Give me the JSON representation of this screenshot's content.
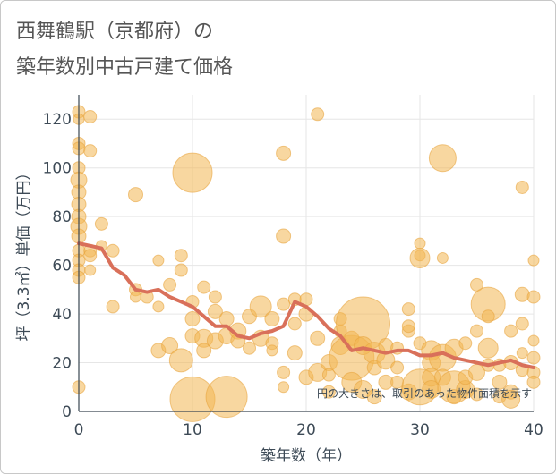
{
  "title_line1": "西舞鶴駅（京都府）の",
  "title_line2": "築年数別中古戸建て価格",
  "chart_data": {
    "type": "scatter",
    "title": "西舞鶴駅（京都府）の築年数別中古戸建て価格",
    "xlabel": "築年数（年）",
    "ylabel": "坪（3.3㎡）単価（万円）",
    "xlim": [
      0,
      40
    ],
    "ylim": [
      0,
      130
    ],
    "xticks": [
      0,
      10,
      20,
      30,
      40
    ],
    "yticks": [
      0,
      20,
      40,
      60,
      80,
      100,
      120
    ],
    "annotation": "円の大きさは、取引のあった物件面積を示す",
    "colors": {
      "bubble_fill": "#f2b652",
      "bubble_stroke": "#e8a540",
      "line": "#d9705a"
    },
    "series": [
      {
        "type": "bubble",
        "points": [
          [
            0,
            123,
            7
          ],
          [
            0,
            120,
            6
          ],
          [
            0,
            110,
            7
          ],
          [
            0,
            100,
            7
          ],
          [
            0,
            95,
            9
          ],
          [
            0,
            90,
            8
          ],
          [
            0,
            85,
            8
          ],
          [
            0,
            80,
            8
          ],
          [
            0,
            76,
            9
          ],
          [
            0,
            72,
            8
          ],
          [
            0,
            66,
            7
          ],
          [
            0,
            62,
            7
          ],
          [
            0,
            58,
            7
          ],
          [
            0,
            55,
            7
          ],
          [
            0,
            10,
            7
          ],
          [
            0,
            108,
            7
          ],
          [
            1,
            121,
            7
          ],
          [
            1,
            107,
            7
          ],
          [
            1,
            66,
            7
          ],
          [
            1,
            64,
            7
          ],
          [
            1,
            58,
            6
          ],
          [
            2,
            77,
            7
          ],
          [
            2,
            68,
            6
          ],
          [
            3,
            43,
            7
          ],
          [
            3,
            66,
            7
          ],
          [
            5,
            89,
            8
          ],
          [
            5,
            50,
            7
          ],
          [
            5,
            47,
            6
          ],
          [
            6,
            47,
            7
          ],
          [
            7,
            62,
            6
          ],
          [
            7,
            43,
            6
          ],
          [
            7,
            25,
            8
          ],
          [
            8,
            52,
            7
          ],
          [
            8,
            27,
            9
          ],
          [
            9,
            64,
            7
          ],
          [
            9,
            58,
            7
          ],
          [
            9,
            21,
            13
          ],
          [
            10,
            98,
            22
          ],
          [
            10,
            5,
            25
          ],
          [
            10,
            38,
            8
          ],
          [
            10,
            31,
            8
          ],
          [
            10,
            45,
            7
          ],
          [
            11,
            30,
            10
          ],
          [
            11,
            51,
            7
          ],
          [
            11,
            25,
            8
          ],
          [
            12,
            47,
            7
          ],
          [
            12,
            41,
            8
          ],
          [
            12,
            29,
            9
          ],
          [
            13,
            6,
            23
          ],
          [
            13,
            38,
            8
          ],
          [
            13,
            31,
            9
          ],
          [
            14,
            33,
            9
          ],
          [
            14,
            29,
            8
          ],
          [
            15,
            39,
            8
          ],
          [
            15,
            26,
            7
          ],
          [
            16,
            43,
            12
          ],
          [
            16,
            30,
            9
          ],
          [
            17,
            38,
            8
          ],
          [
            17,
            28,
            7
          ],
          [
            17,
            25,
            6
          ],
          [
            18,
            106,
            8
          ],
          [
            18,
            72,
            8
          ],
          [
            18,
            44,
            7
          ],
          [
            18,
            16,
            7
          ],
          [
            18,
            10,
            6
          ],
          [
            19,
            46,
            7
          ],
          [
            19,
            24,
            8
          ],
          [
            19,
            36,
            7
          ],
          [
            20,
            46,
            7
          ],
          [
            20,
            40,
            8
          ],
          [
            20,
            14,
            8
          ],
          [
            21,
            122,
            7
          ],
          [
            21,
            16,
            10
          ],
          [
            21,
            30,
            8
          ],
          [
            22,
            20,
            9
          ],
          [
            22,
            15,
            7
          ],
          [
            22,
            8,
            7
          ],
          [
            23,
            38,
            7
          ],
          [
            23,
            33,
            7
          ],
          [
            23,
            27,
            10
          ],
          [
            24,
            22,
            25
          ],
          [
            24,
            12,
            11
          ],
          [
            24,
            30,
            8
          ],
          [
            25,
            36,
            30
          ],
          [
            25,
            27,
            10
          ],
          [
            25,
            9,
            10
          ],
          [
            26,
            24,
            12
          ],
          [
            26,
            18,
            8
          ],
          [
            26,
            6,
            8
          ],
          [
            27,
            21,
            10
          ],
          [
            27,
            27,
            8
          ],
          [
            27,
            12,
            8
          ],
          [
            28,
            26,
            7
          ],
          [
            28,
            18,
            7
          ],
          [
            28,
            12,
            7
          ],
          [
            29,
            42,
            7
          ],
          [
            29,
            33,
            7
          ],
          [
            29,
            35,
            7
          ],
          [
            29,
            8,
            9
          ],
          [
            30,
            69,
            6
          ],
          [
            30,
            64,
            6
          ],
          [
            30,
            63,
            11
          ],
          [
            30,
            28,
            7
          ],
          [
            30,
            10,
            20
          ],
          [
            31,
            25,
            11
          ],
          [
            31,
            20,
            10
          ],
          [
            31,
            14,
            10
          ],
          [
            31,
            9,
            10
          ],
          [
            32,
            104,
            15
          ],
          [
            32,
            63,
            6
          ],
          [
            32,
            22,
            15
          ],
          [
            32,
            14,
            9
          ],
          [
            33,
            10,
            18
          ],
          [
            33,
            6,
            8
          ],
          [
            33,
            26,
            10
          ],
          [
            34,
            28,
            7
          ],
          [
            34,
            9,
            10
          ],
          [
            34,
            14,
            8
          ],
          [
            35,
            52,
            7
          ],
          [
            35,
            33,
            7
          ],
          [
            35,
            16,
            9
          ],
          [
            35,
            7,
            7
          ],
          [
            36,
            44,
            19
          ],
          [
            36,
            39,
            7
          ],
          [
            36,
            26,
            11
          ],
          [
            36,
            19,
            7
          ],
          [
            37,
            12,
            8
          ],
          [
            37,
            6,
            7
          ],
          [
            37,
            19,
            7
          ],
          [
            38,
            33,
            7
          ],
          [
            38,
            20,
            8
          ],
          [
            38,
            8,
            8
          ],
          [
            38,
            5,
            10
          ],
          [
            39,
            92,
            7
          ],
          [
            39,
            48,
            8
          ],
          [
            39,
            36,
            7
          ],
          [
            39,
            17,
            7
          ],
          [
            39,
            24,
            6
          ],
          [
            40,
            62,
            6
          ],
          [
            40,
            47,
            7
          ],
          [
            40,
            29,
            6
          ],
          [
            40,
            22,
            7
          ],
          [
            40,
            16,
            7
          ],
          [
            40,
            12,
            7
          ]
        ]
      },
      {
        "type": "line",
        "x": [
          0,
          1,
          2,
          3,
          4,
          5,
          6,
          7,
          8,
          9,
          10,
          11,
          12,
          13,
          14,
          15,
          16,
          17,
          18,
          19,
          20,
          21,
          22,
          23,
          24,
          25,
          26,
          27,
          28,
          29,
          30,
          31,
          32,
          33,
          34,
          35,
          36,
          37,
          38,
          39,
          40
        ],
        "y": [
          69,
          68,
          67,
          59,
          56,
          50,
          49,
          50,
          47,
          45,
          43,
          39,
          35,
          35,
          31,
          30,
          32,
          33,
          35,
          45,
          43,
          39,
          34,
          31,
          25,
          26,
          25,
          24,
          25,
          25,
          23,
          23,
          24,
          22,
          21,
          20,
          19,
          20,
          21,
          19,
          18
        ]
      }
    ]
  }
}
